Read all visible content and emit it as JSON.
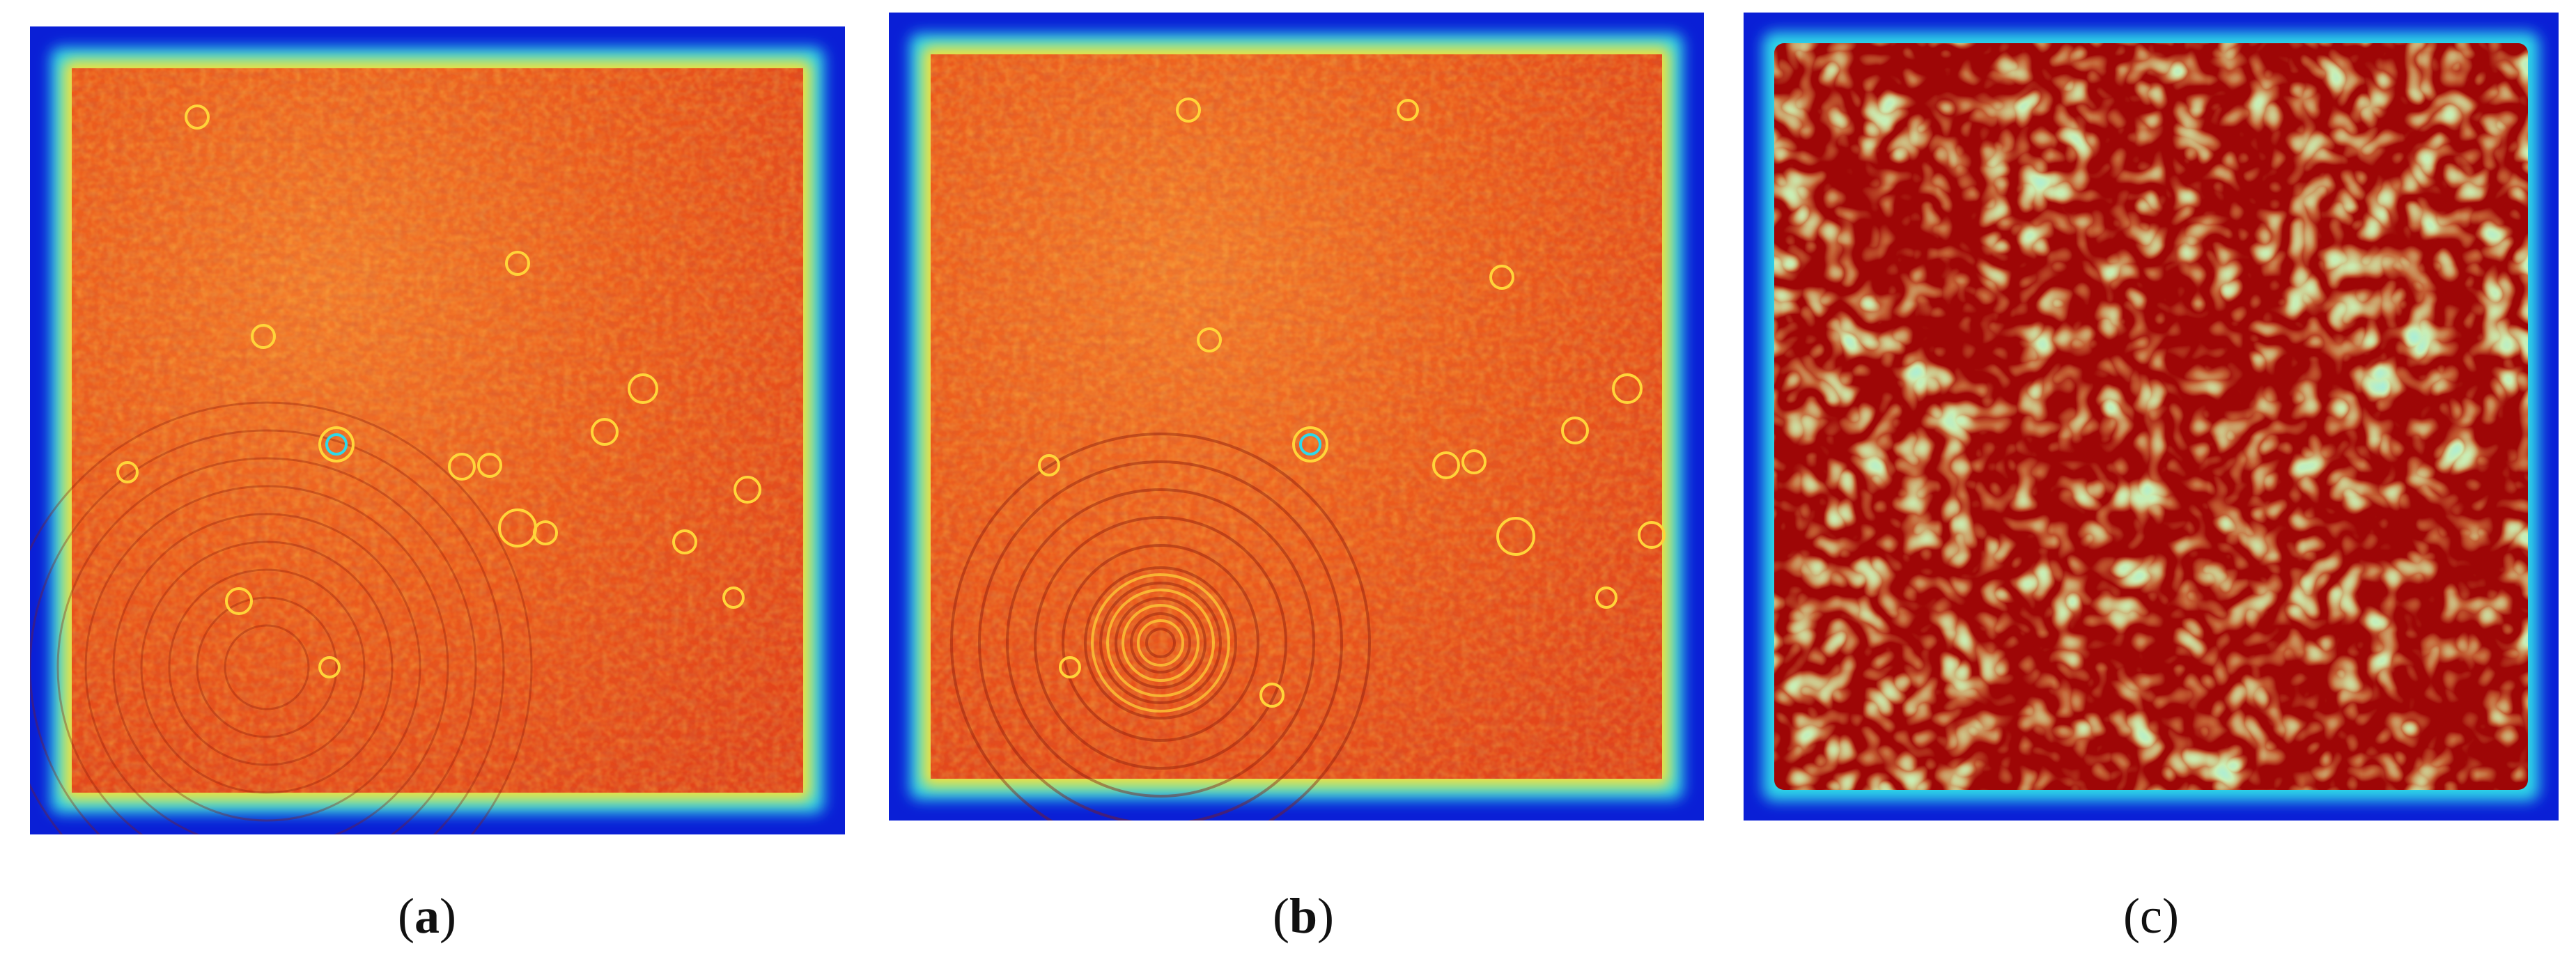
{
  "figure": {
    "panels": [
      {
        "id": "a",
        "label": "a",
        "kind": "interference-pattern"
      },
      {
        "id": "b",
        "label": "b",
        "kind": "interference-pattern"
      },
      {
        "id": "c",
        "label": "c",
        "kind": "speckle-pattern"
      }
    ]
  },
  "colors": {
    "border_blue": "#0a1fd6",
    "edge_cyan": "#2fd8e8",
    "edge_yellow": "#f5e23a",
    "field_orange": "#ef5a1a",
    "field_red": "#e23a10",
    "speckle_dark_red": "#9e0606",
    "highlight_yellow": "#ffd43a"
  }
}
